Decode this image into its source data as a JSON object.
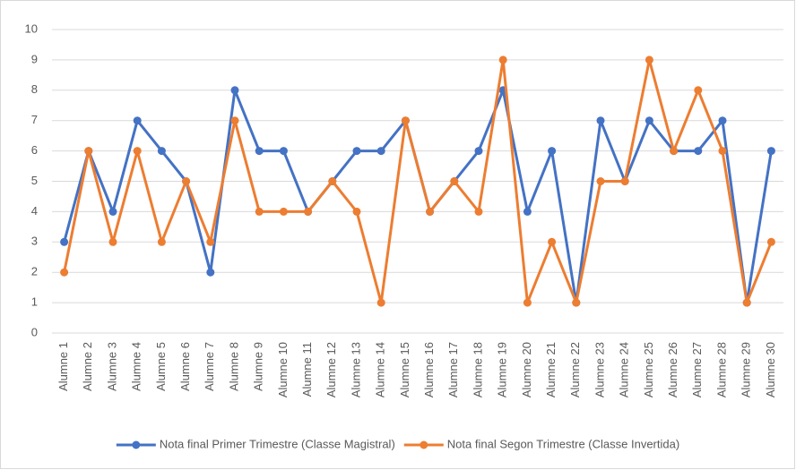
{
  "chart_data": {
    "type": "line",
    "categories": [
      "Alumne 1",
      "Alumne 2",
      "Alumne 3",
      "Alumne 4",
      "Alumne 5",
      "Alumne 6",
      "Alumne 7",
      "Alumne 8",
      "Alumne 9",
      "Alumne 10",
      "Alumne 11",
      "Alumne 12",
      "Alumne 13",
      "Alumne 14",
      "Alumne 15",
      "Alumne 16",
      "Alumne 17",
      "Alumne 18",
      "Alumne 19",
      "Alumne 20",
      "Alumne 21",
      "Alumne 22",
      "Alumne 23",
      "Alumne 24",
      "Alumne 25",
      "Alumne 26",
      "Alumne 27",
      "Alumne 28",
      "Alumne 29",
      "Alumne 30"
    ],
    "series": [
      {
        "name": "Nota final Primer Trimestre (Classe Magistral)",
        "color": "#4472c4",
        "values": [
          3,
          6,
          4,
          7,
          6,
          5,
          2,
          8,
          6,
          6,
          4,
          5,
          6,
          6,
          7,
          4,
          5,
          6,
          8,
          4,
          6,
          1,
          7,
          5,
          7,
          6,
          6,
          7,
          1,
          6
        ]
      },
      {
        "name": "Nota final Segon Trimestre (Classe Invertida)",
        "color": "#ed7d31",
        "values": [
          2,
          6,
          3,
          6,
          3,
          5,
          3,
          7,
          4,
          4,
          4,
          5,
          4,
          1,
          7,
          4,
          5,
          4,
          9,
          1,
          3,
          1,
          5,
          5,
          9,
          6,
          8,
          6,
          1,
          3
        ]
      }
    ],
    "ylim": [
      0,
      10
    ],
    "yticks": [
      0,
      1,
      2,
      3,
      4,
      5,
      6,
      7,
      8,
      9,
      10
    ],
    "grid": true,
    "legend": "bottom"
  }
}
